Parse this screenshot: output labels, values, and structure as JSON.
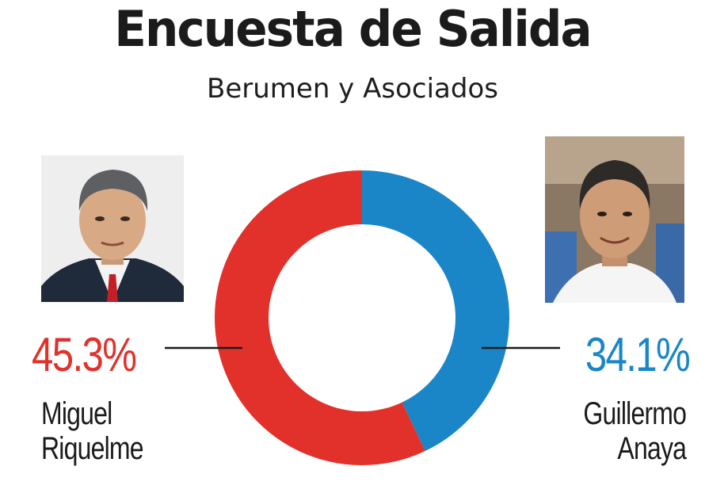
{
  "title": "Encuesta de Salida",
  "subtitle": "Berumen y Asociados",
  "colors": {
    "red": "#e2312b",
    "blue": "#1a86c8"
  },
  "chart_data": {
    "type": "pie",
    "style": "donut",
    "title": "Encuesta de Salida",
    "subtitle": "Berumen y Asociados",
    "slices": [
      {
        "label": "Guillermo Anaya",
        "value": 34.1,
        "value_label": "34.1%",
        "color": "#1a86c8"
      },
      {
        "label": "Miguel Riquelme",
        "value": 45.3,
        "value_label": "45.3%",
        "color": "#e2312b"
      }
    ]
  },
  "candidates": {
    "left": {
      "percent": "45.3%",
      "name_line1": "Miguel",
      "name_line2": "Riquelme"
    },
    "right": {
      "percent": "34.1%",
      "name_line1": "Guillermo",
      "name_line2": "Anaya"
    }
  },
  "icons": {
    "left_photo": "candidate-photo",
    "right_photo": "candidate-photo"
  }
}
